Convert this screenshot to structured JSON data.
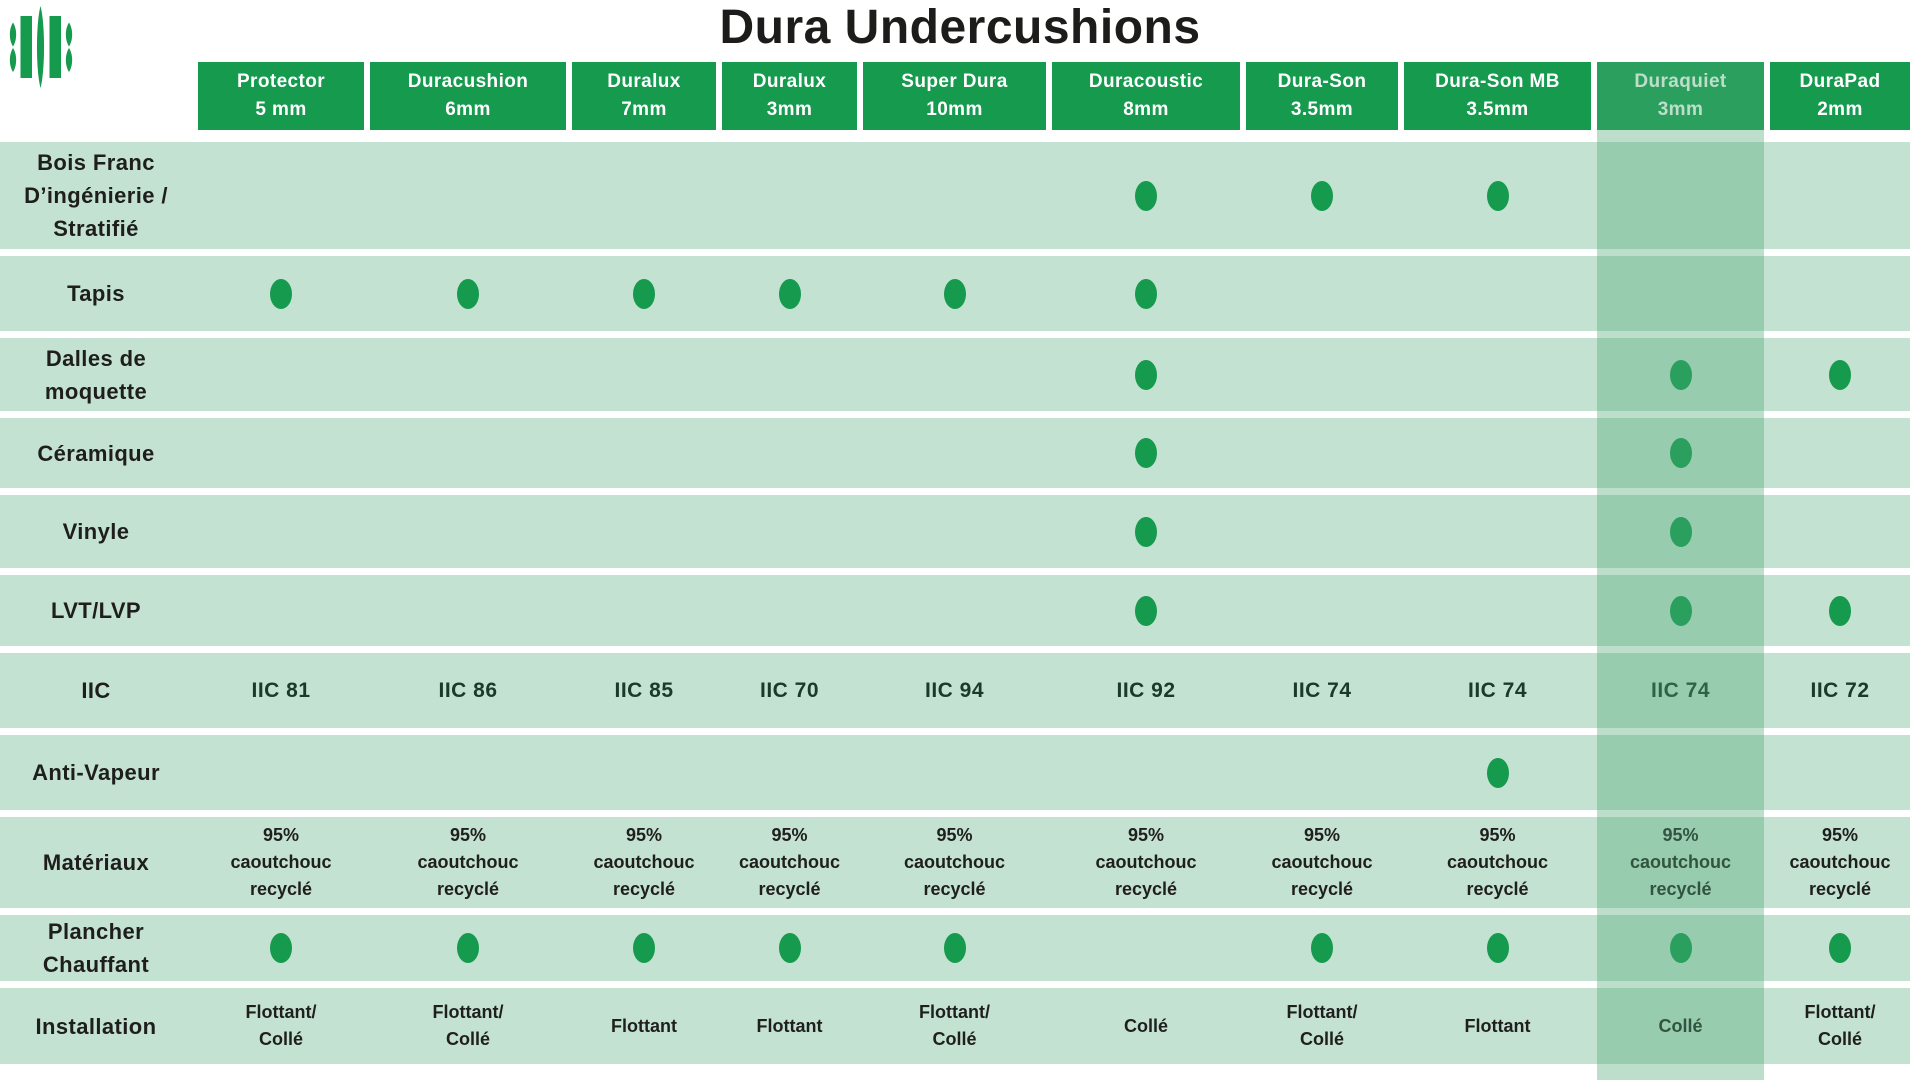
{
  "title": "Dura Undercushions",
  "colors": {
    "brand_green": "#159a4e",
    "row_background": "#c4e2d1",
    "highlight_overlay": "rgba(80,168,118,0.38)",
    "text_dark": "#1f1f1d"
  },
  "logo": {
    "name": "dura-undercushions-logo"
  },
  "columns": [
    {
      "name": "Protector",
      "size": "5 mm"
    },
    {
      "name": "Duracushion",
      "size": "6mm"
    },
    {
      "name": "Duralux",
      "size": "7mm"
    },
    {
      "name": "Duralux",
      "size": "3mm"
    },
    {
      "name": "Super Dura",
      "size": "10mm"
    },
    {
      "name": "Duracoustic",
      "size": "8mm"
    },
    {
      "name": "Dura-Son",
      "size": "3.5mm"
    },
    {
      "name": "Dura-Son MB",
      "size": "3.5mm"
    },
    {
      "name": "Duraquiet",
      "size": "3mm",
      "highlighted": true
    },
    {
      "name": "DuraPad",
      "size": "2mm"
    }
  ],
  "rows": [
    {
      "label": "Bois Franc\nD’ingénierie /\nStratifié",
      "type": "dots",
      "cells": [
        0,
        0,
        0,
        0,
        0,
        1,
        1,
        1,
        0,
        0
      ]
    },
    {
      "label": "Tapis",
      "type": "dots",
      "cells": [
        1,
        1,
        1,
        1,
        1,
        1,
        0,
        0,
        0,
        0
      ]
    },
    {
      "label": "Dalles de\nmoquette",
      "type": "dots",
      "cells": [
        0,
        0,
        0,
        0,
        0,
        1,
        0,
        0,
        1,
        1
      ]
    },
    {
      "label": "Céramique",
      "type": "dots",
      "cells": [
        0,
        0,
        0,
        0,
        0,
        1,
        0,
        0,
        1,
        0
      ]
    },
    {
      "label": "Vinyle",
      "type": "dots",
      "cells": [
        0,
        0,
        0,
        0,
        0,
        1,
        0,
        0,
        1,
        0
      ]
    },
    {
      "label": "LVT/LVP",
      "type": "dots",
      "cells": [
        0,
        0,
        0,
        0,
        0,
        1,
        0,
        0,
        1,
        1
      ]
    },
    {
      "label": "IIC",
      "type": "text",
      "cells": [
        "IIC 81",
        "IIC 86",
        "IIC 85",
        "IIC 70",
        "IIC 94",
        "IIC 92",
        "IIC 74",
        "IIC 74",
        "IIC 74",
        "IIC 72"
      ]
    },
    {
      "label": "Anti-Vapeur",
      "type": "dots",
      "cells": [
        0,
        0,
        0,
        0,
        0,
        0,
        0,
        1,
        0,
        0
      ]
    },
    {
      "label": "Matériaux",
      "type": "text",
      "cells": [
        "95%\ncaoutchouc\nrecyclé",
        "95%\ncaoutchouc\nrecyclé",
        "95%\ncaoutchouc\nrecyclé",
        "95%\ncaoutchouc\nrecyclé",
        "95%\ncaoutchouc\nrecyclé",
        "95%\ncaoutchouc\nrecyclé",
        "95%\ncaoutchouc\nrecyclé",
        "95%\ncaoutchouc\nrecyclé",
        "95%\ncaoutchouc\nrecyclé",
        "95%\ncaoutchouc\nrecyclé"
      ]
    },
    {
      "label": "Plancher\nChauffant",
      "type": "dots",
      "cells": [
        1,
        1,
        1,
        1,
        1,
        0,
        1,
        1,
        1,
        1
      ]
    },
    {
      "label": "Installation",
      "type": "text",
      "cells": [
        "Flottant/\nCollé",
        "Flottant/\nCollé",
        "Flottant",
        "Flottant",
        "Flottant/\nCollé",
        "Collé",
        "Flottant/\nCollé",
        "Flottant",
        "Collé",
        "Flottant/\nCollé"
      ]
    }
  ]
}
